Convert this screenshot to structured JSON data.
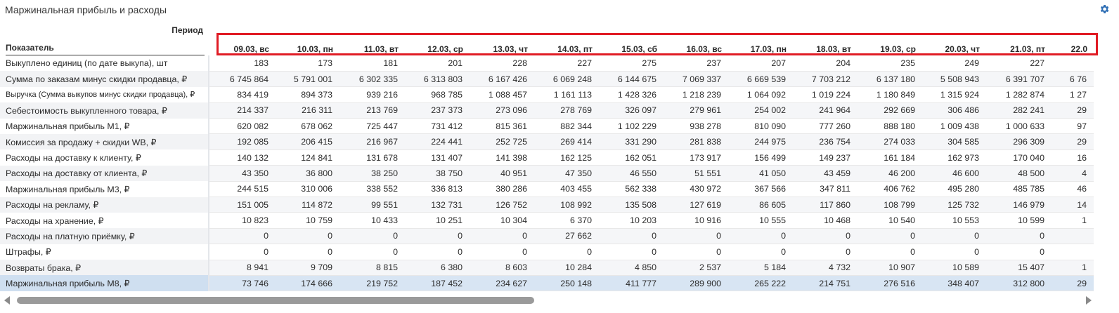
{
  "title": "Маржинальная прибыль и расходы",
  "settings_icon": "gear-icon",
  "header": {
    "period_label": "Период",
    "indicator_label": "Показатель",
    "dates": [
      "09.03, вс",
      "10.03, пн",
      "11.03, вт",
      "12.03, ср",
      "13.03, чт",
      "14.03, пт",
      "15.03, сб",
      "16.03, вс",
      "17.03, пн",
      "18.03, вт",
      "19.03, ср",
      "20.03, чт",
      "21.03, пт",
      "22.0"
    ]
  },
  "rows": [
    {
      "label": "Выкуплено единиц (по дате выкупа), шт",
      "values": [
        "183",
        "173",
        "181",
        "201",
        "228",
        "227",
        "275",
        "237",
        "207",
        "204",
        "235",
        "249",
        "227",
        ""
      ]
    },
    {
      "label": "Сумма по заказам минус скидки продавца, ₽",
      "values": [
        "6 745 864",
        "5 791 001",
        "6 302 335",
        "6 313 803",
        "6 167 426",
        "6 069 248",
        "6 144 675",
        "7 069 337",
        "6 669 539",
        "7 703 212",
        "6 137 180",
        "5 508 943",
        "6 391 707",
        "6 76"
      ]
    },
    {
      "label": "Выручка (Сумма выкупов минус скидки продавца), ₽",
      "values": [
        "834 419",
        "894 373",
        "939 216",
        "968 785",
        "1 088 457",
        "1 161 113",
        "1 428 326",
        "1 218 239",
        "1 064 092",
        "1 019 224",
        "1 180 849",
        "1 315 924",
        "1 282 874",
        "1 27"
      ]
    },
    {
      "label": "Себестоимость выкупленного товара, ₽",
      "values": [
        "214 337",
        "216 311",
        "213 769",
        "237 373",
        "273 096",
        "278 769",
        "326 097",
        "279 961",
        "254 002",
        "241 964",
        "292 669",
        "306 486",
        "282 241",
        "29"
      ]
    },
    {
      "label": "Маржинальная прибыль М1, ₽",
      "values": [
        "620 082",
        "678 062",
        "725 447",
        "731 412",
        "815 361",
        "882 344",
        "1 102 229",
        "938 278",
        "810 090",
        "777 260",
        "888 180",
        "1 009 438",
        "1 000 633",
        "97"
      ]
    },
    {
      "label": "Комиссия за продажу + скидки WB, ₽",
      "values": [
        "192 085",
        "206 415",
        "216 967",
        "224 441",
        "252 725",
        "269 414",
        "331 290",
        "281 838",
        "244 975",
        "236 754",
        "274 033",
        "304 585",
        "296 309",
        "29"
      ]
    },
    {
      "label": "Расходы на доставку к клиенту, ₽",
      "values": [
        "140 132",
        "124 841",
        "131 678",
        "131 407",
        "141 398",
        "162 125",
        "162 051",
        "173 917",
        "156 499",
        "149 237",
        "161 184",
        "162 973",
        "170 040",
        "16"
      ]
    },
    {
      "label": "Расходы на доставку от клиента, ₽",
      "values": [
        "43 350",
        "36 800",
        "38 250",
        "38 750",
        "40 951",
        "47 350",
        "46 550",
        "51 551",
        "41 050",
        "43 459",
        "46 200",
        "46 600",
        "48 500",
        "4"
      ]
    },
    {
      "label": "Маржинальная прибыль М3, ₽",
      "values": [
        "244 515",
        "310 006",
        "338 552",
        "336 813",
        "380 286",
        "403 455",
        "562 338",
        "430 972",
        "367 566",
        "347 811",
        "406 762",
        "495 280",
        "485 785",
        "46"
      ]
    },
    {
      "label": "Расходы на рекламу, ₽",
      "values": [
        "151 005",
        "114 872",
        "99 551",
        "132 731",
        "126 752",
        "108 992",
        "135 508",
        "127 619",
        "86 605",
        "117 860",
        "108 799",
        "125 732",
        "146 979",
        "14"
      ]
    },
    {
      "label": "Расходы на хранение, ₽",
      "values": [
        "10 823",
        "10 759",
        "10 433",
        "10 251",
        "10 304",
        "6 370",
        "10 203",
        "10 916",
        "10 555",
        "10 468",
        "10 540",
        "10 553",
        "10 599",
        "1"
      ]
    },
    {
      "label": "Расходы на платную приёмку, ₽",
      "values": [
        "0",
        "0",
        "0",
        "0",
        "0",
        "27 662",
        "0",
        "0",
        "0",
        "0",
        "0",
        "0",
        "0",
        ""
      ]
    },
    {
      "label": "Штрафы, ₽",
      "values": [
        "0",
        "0",
        "0",
        "0",
        "0",
        "0",
        "0",
        "0",
        "0",
        "0",
        "0",
        "0",
        "0",
        ""
      ]
    },
    {
      "label": "Возвраты брака, ₽",
      "values": [
        "8 941",
        "9 709",
        "8 815",
        "6 380",
        "8 603",
        "10 284",
        "4 850",
        "2 537",
        "5 184",
        "4 732",
        "10 907",
        "10 589",
        "15 407",
        "1"
      ]
    },
    {
      "label": "Маржинальная прибыль М8, ₽",
      "values": [
        "73 746",
        "174 666",
        "219 752",
        "187 452",
        "234 627",
        "250 148",
        "411 777",
        "289 900",
        "265 222",
        "214 751",
        "276 516",
        "348 407",
        "312 800",
        "29"
      ]
    }
  ],
  "scrollbar": {
    "left_icon": "scroll-left-icon",
    "right_icon": "scroll-right-icon"
  }
}
